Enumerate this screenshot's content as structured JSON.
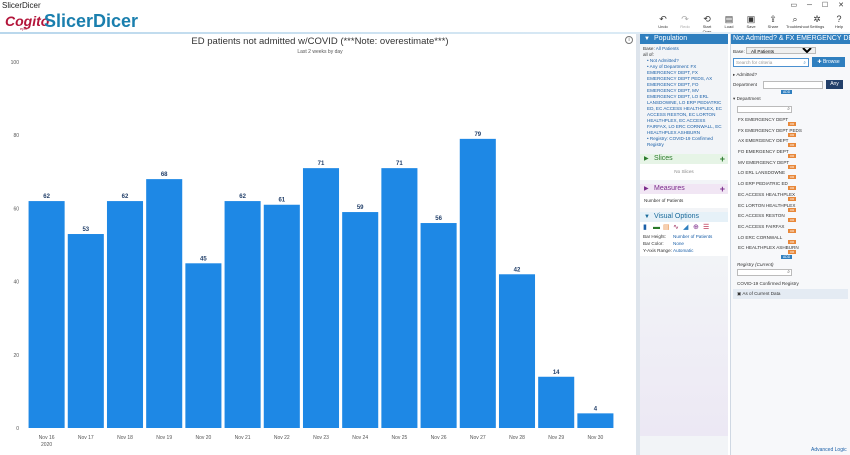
{
  "window": {
    "title": "SlicerDicer"
  },
  "brand": {
    "cogito": "Cogito",
    "epic": "epic",
    "product": "SlicerDicer"
  },
  "toolbar": [
    {
      "name": "undo",
      "label": "Undo",
      "icon": "↶",
      "dim": false
    },
    {
      "name": "redo",
      "label": "Redo",
      "icon": "↷",
      "dim": true
    },
    {
      "name": "start-over",
      "label": "Start Over",
      "icon": "⟲",
      "dim": false
    },
    {
      "name": "load",
      "label": "Load",
      "icon": "▤",
      "dim": false
    },
    {
      "name": "save",
      "label": "Save",
      "icon": "▣",
      "dim": false
    },
    {
      "name": "share",
      "label": "Share",
      "icon": "⇪",
      "dim": false
    },
    {
      "name": "troubleshoot",
      "label": "Troubleshoot",
      "icon": "⌕",
      "dim": false
    },
    {
      "name": "settings",
      "label": "Settings",
      "icon": "✲",
      "dim": false
    },
    {
      "name": "help",
      "label": "Help",
      "icon": "?",
      "dim": false
    }
  ],
  "colors": {
    "bar": "#1e88e5",
    "brand_blue": "#2f7fbf",
    "brand_red": "#b3153a"
  },
  "chart": {
    "title": "ED patients not admitted w/COVID (***Note: overestimate***)",
    "subtitle": "Last 2 weeks by day"
  },
  "chart_data": {
    "type": "bar",
    "title": "ED patients not admitted w/COVID (***Note: overestimate***)",
    "subtitle": "Last 2 weeks by day",
    "categories": [
      "Nov 16",
      "Nov 17",
      "Nov 18",
      "Nov 19",
      "Nov 20",
      "Nov 21",
      "Nov 22",
      "Nov 23",
      "Nov 24",
      "Nov 25",
      "Nov 26",
      "Nov 27",
      "Nov 28",
      "Nov 29",
      "Nov 30"
    ],
    "first_category_year": "2020",
    "values": [
      62,
      53,
      62,
      68,
      45,
      62,
      61,
      71,
      59,
      71,
      56,
      79,
      42,
      14,
      4
    ],
    "ylim": [
      0,
      100
    ],
    "yticks": [
      0,
      20,
      40,
      60,
      80,
      100
    ],
    "grid": false,
    "legend": "none"
  },
  "population": {
    "title": "Population",
    "base_label": "Base:",
    "base_value": "All Patients",
    "all_of": "all of:",
    "criteria": [
      "Not Admitted?",
      "Any of Department: FX EMERGENCY DEPT, FX EMERGENCY DEPT PEDS, AX EMERGENCY DEPT, FO EMERGENCY DEPT, MV EMERGENCY DEPT, LO ERL LANSDOWNE, LO ERP PEDIATRIC ED, EC ACCESS HEALTHPLEX, EC ACCESS RESTON, EC LORTON HEALTHPLEX, EC ACCESS FAIRFAX, LO ERC CORNWALL, EC HEALTHPLEX ASHBURN",
      "Registry: COVID-19 Confirmed Registry"
    ]
  },
  "slices": {
    "title": "Slices",
    "empty": "No Slices"
  },
  "measures": {
    "title": "Measures",
    "items": [
      "Number of Patients"
    ]
  },
  "visual_options": {
    "title": "Visual Options",
    "rows": [
      {
        "k": "Bar Height:",
        "v": "Number of Patients"
      },
      {
        "k": "Bar Color:",
        "v": "None"
      },
      {
        "k": "Y-Axis Range:",
        "v": "Automatic"
      }
    ]
  },
  "criteria_panel": {
    "title": "Not Admitted? & FX EMERGENCY DE...",
    "base_label": "Base:",
    "base_value": "All Patients",
    "search_placeholder": "Search for criteria",
    "browse": "Browse",
    "admitted_title": "Admitted?",
    "department_label": "Department",
    "any_button": "Any",
    "add_badge": "ADD",
    "department_group": "Department",
    "departments": [
      "FX EMERGENCY DEPT",
      "FX EMERGENCY DEPT PEDS",
      "AX EMERGENCY DEPT",
      "FO EMERGENCY DEPT",
      "MV EMERGENCY DEPT",
      "LO ERL LANSDOWNE",
      "LO ERP PEDIATRIC ED",
      "EC ACCESS HEALTHPLEX",
      "EC LORTON HEALTHPLEX",
      "EC ACCESS RESTON",
      "EC ACCESS FAIRFAX",
      "LO ERC CORNWALL",
      "EC HEALTHPLEX ASHBURN"
    ],
    "dept_tag": "OR",
    "registry_label": "Registry (Current)",
    "registry_value": "COVID-19 Confirmed Registry",
    "as_of": "As of Current Data",
    "advanced_logic": "Advanced Logic"
  }
}
